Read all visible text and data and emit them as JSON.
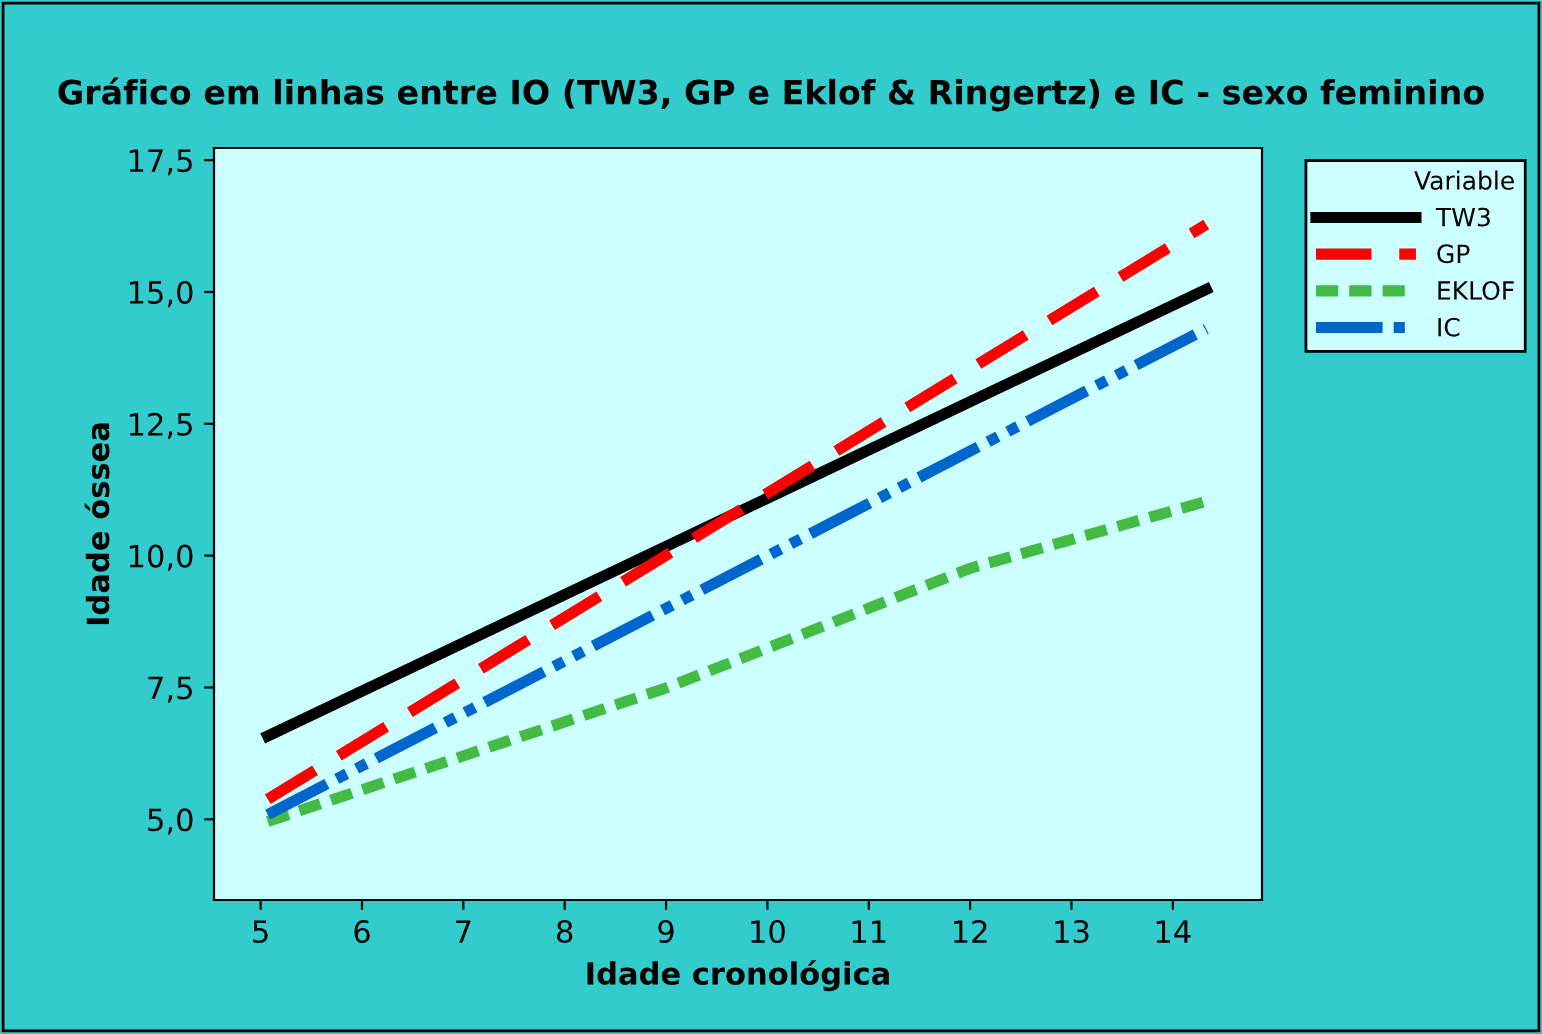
{
  "chart_data": {
    "type": "line",
    "title": "Gráfico em linhas entre IO (TW3, GP e Eklof & Ringertz) e IC - sexo feminino",
    "xlabel": "Idade cronológica",
    "ylabel": "Idade óssea",
    "legend_title": "Variable",
    "legend": "top right",
    "grid": false,
    "series": [
      {
        "name": "TW3",
        "color": "#000000",
        "line_style": "solid",
        "x": [
          5.07,
          14.33
        ],
        "values": [
          6.58,
          15.05
        ]
      },
      {
        "name": "GP",
        "color": "#ff0000",
        "line_style": "dashed",
        "x": [
          5.07,
          14.33
        ],
        "values": [
          5.38,
          16.28
        ]
      },
      {
        "name": "EKLOF",
        "color": "#44bb44",
        "line_style": "dotted",
        "x": [
          5.07,
          9,
          12,
          14.33
        ],
        "values": [
          4.96,
          7.49,
          9.76,
          11.03
        ]
      },
      {
        "name": "IC",
        "color": "#0066cc",
        "line_style": "dashdot",
        "x": [
          5.07,
          14.33
        ],
        "values": [
          5.09,
          14.3
        ]
      }
    ],
    "xlim": [
      4.54,
      14.88
    ],
    "ylim": [
      3.47,
      17.73
    ],
    "xticks": [
      5,
      6,
      7,
      8,
      9,
      10,
      11,
      12,
      13,
      14
    ],
    "yticks": [
      {
        "value": 5,
        "label": "5,0"
      },
      {
        "value": 7.5,
        "label": "7,5"
      },
      {
        "value": 10,
        "label": "10,0"
      },
      {
        "value": 12.5,
        "label": "12,5"
      },
      {
        "value": 15,
        "label": "15,0"
      },
      {
        "value": 17.5,
        "label": "17,5"
      }
    ]
  }
}
